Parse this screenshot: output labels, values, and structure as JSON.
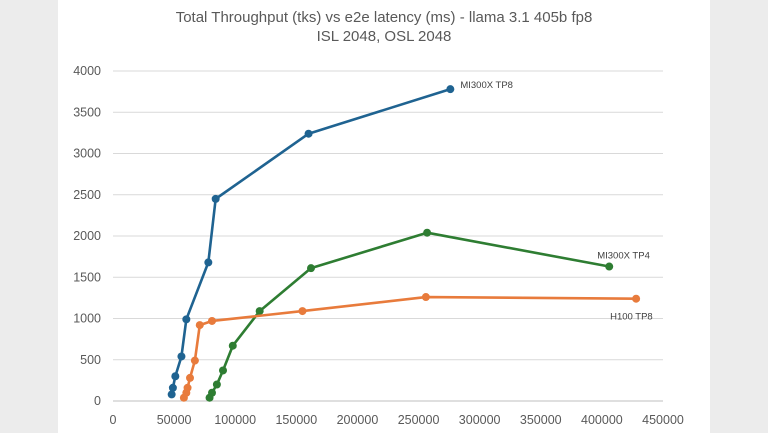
{
  "chart_data": {
    "type": "scatter",
    "title": "Total Throughput (tks) vs e2e latency (ms) - llama 3.1 405b fp8",
    "subtitle": "ISL 2048, OSL 2048",
    "xlabel": "",
    "ylabel": "",
    "xlim": [
      0,
      450000
    ],
    "ylim": [
      0,
      4000
    ],
    "x_ticks": [
      "0",
      "50000",
      "100000",
      "150000",
      "200000",
      "250000",
      "300000",
      "350000",
      "400000",
      "450000"
    ],
    "y_ticks": [
      "0",
      "500",
      "1000",
      "1500",
      "2000",
      "2500",
      "3000",
      "3500",
      "4000"
    ],
    "grid": "horizontal",
    "legend": "none",
    "series": [
      {
        "name": "MI300X TP8",
        "color": "#1f6391",
        "points": [
          [
            48000,
            80
          ],
          [
            49000,
            160
          ],
          [
            51000,
            300
          ],
          [
            56000,
            540
          ],
          [
            60000,
            990
          ],
          [
            78000,
            1680
          ],
          [
            84000,
            2450
          ],
          [
            160000,
            3240
          ],
          [
            276000,
            3780
          ]
        ]
      },
      {
        "name": "MI300X TP4",
        "color": "#2e7d32",
        "points": [
          [
            79000,
            40
          ],
          [
            81000,
            100
          ],
          [
            85000,
            200
          ],
          [
            90000,
            370
          ],
          [
            98000,
            670
          ],
          [
            120000,
            1090
          ],
          [
            162000,
            1610
          ],
          [
            257000,
            2040
          ],
          [
            406000,
            1630
          ]
        ]
      },
      {
        "name": "H100 TP8",
        "color": "#e87b3c",
        "points": [
          [
            58000,
            40
          ],
          [
            60000,
            100
          ],
          [
            61000,
            160
          ],
          [
            63000,
            280
          ],
          [
            67000,
            490
          ],
          [
            71000,
            920
          ],
          [
            81000,
            970
          ],
          [
            155000,
            1090
          ],
          [
            256000,
            1260
          ],
          [
            428000,
            1240
          ]
        ]
      }
    ]
  }
}
